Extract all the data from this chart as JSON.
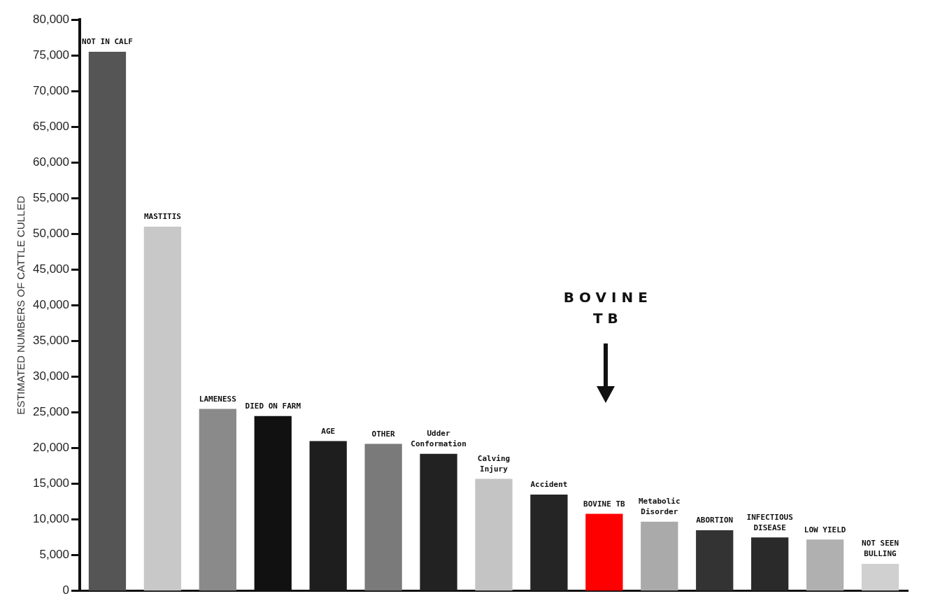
{
  "chart_data": {
    "type": "bar",
    "ylabel": "ESTIMATED NUMBERS OF CATTLE CULLED",
    "categories": [
      "NOT IN CALF",
      "MASTITIS",
      "LAMENESS",
      "DIED ON FARM",
      "AGE",
      "OTHER",
      "Udder Conformation",
      "Calving Injury",
      "Accident",
      "BOVINE TB",
      "Metabolic Disorder",
      "ABORTION",
      "INFECTIOUS DISEASE",
      "LOW YIELD",
      "NOT SEEN BULLING"
    ],
    "values": [
      75500,
      51000,
      25500,
      24500,
      21000,
      20600,
      19200,
      15700,
      13500,
      10800,
      9700,
      8500,
      7500,
      7200,
      3800
    ],
    "colors": [
      "#555555",
      "#c8c8c8",
      "#8a8a8a",
      "#111111",
      "#1e1e1e",
      "#7a7a7a",
      "#222222",
      "#c4c4c4",
      "#252525",
      "#ff0000",
      "#aaaaaa",
      "#333333",
      "#2a2a2a",
      "#b0b0b0",
      "#d0d0d0"
    ],
    "ylim": [
      0,
      80000
    ],
    "yticks": [
      {
        "value": 0,
        "label": "0"
      },
      {
        "value": 5000,
        "label": "5,000"
      },
      {
        "value": 10000,
        "label": "10,000"
      },
      {
        "value": 15000,
        "label": "15,000"
      },
      {
        "value": 20000,
        "label": "20,000"
      },
      {
        "value": 25000,
        "label": "25,000"
      },
      {
        "value": 30000,
        "label": "30,000"
      },
      {
        "value": 35000,
        "label": "35,000"
      },
      {
        "value": 40000,
        "label": "40,000"
      },
      {
        "value": 45000,
        "label": "45,000"
      },
      {
        "value": 50000,
        "label": "50,000"
      },
      {
        "value": 55000,
        "label": "55,000"
      },
      {
        "value": 60000,
        "label": "60,000"
      },
      {
        "value": 65000,
        "label": "65,000"
      },
      {
        "value": 70000,
        "label": "70,000"
      },
      {
        "value": 75000,
        "label": "75,000"
      },
      {
        "value": 80000,
        "label": "80,000"
      }
    ],
    "annotations": [
      "BOVINE TB"
    ],
    "grid": false,
    "legend": false,
    "tick_labels": "y"
  }
}
